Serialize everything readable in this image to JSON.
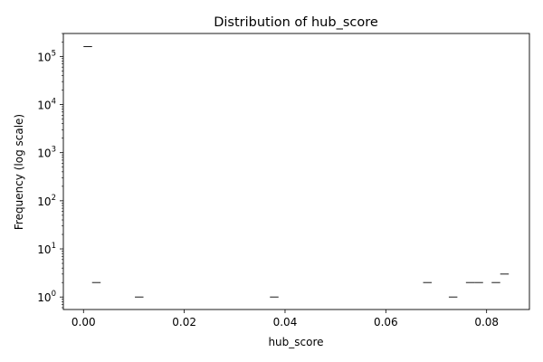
{
  "chart_data": {
    "type": "bar",
    "title": "Distribution of hub_score",
    "xlabel": "hub_score",
    "ylabel": "Frequency (log scale)",
    "y_scale": "log",
    "xlim": [
      -0.004,
      0.0885
    ],
    "ylim": [
      0.55,
      300000
    ],
    "grid": false,
    "x_ticks": [
      {
        "value": 0.0,
        "label": "0.00"
      },
      {
        "value": 0.02,
        "label": "0.02"
      },
      {
        "value": 0.04,
        "label": "0.04"
      },
      {
        "value": 0.06,
        "label": "0.06"
      },
      {
        "value": 0.08,
        "label": "0.08"
      }
    ],
    "y_ticks": [
      {
        "value": 1,
        "base": "10",
        "exp": "0"
      },
      {
        "value": 10,
        "base": "10",
        "exp": "1"
      },
      {
        "value": 100,
        "base": "10",
        "exp": "2"
      },
      {
        "value": 1000,
        "base": "10",
        "exp": "3"
      },
      {
        "value": 10000,
        "base": "10",
        "exp": "4"
      },
      {
        "value": 100000,
        "base": "10",
        "exp": "5"
      }
    ],
    "bins": [
      {
        "x0": 0.0,
        "x1": 0.0017,
        "count": 160000
      },
      {
        "x0": 0.0017,
        "x1": 0.0034,
        "count": 2
      },
      {
        "x0": 0.0102,
        "x1": 0.0119,
        "count": 1
      },
      {
        "x0": 0.037,
        "x1": 0.0387,
        "count": 1
      },
      {
        "x0": 0.0674,
        "x1": 0.0691,
        "count": 2
      },
      {
        "x0": 0.0725,
        "x1": 0.0742,
        "count": 1
      },
      {
        "x0": 0.0759,
        "x1": 0.0776,
        "count": 2
      },
      {
        "x0": 0.0776,
        "x1": 0.0793,
        "count": 2
      },
      {
        "x0": 0.081,
        "x1": 0.0827,
        "count": 2
      },
      {
        "x0": 0.0827,
        "x1": 0.0844,
        "count": 3
      }
    ]
  }
}
